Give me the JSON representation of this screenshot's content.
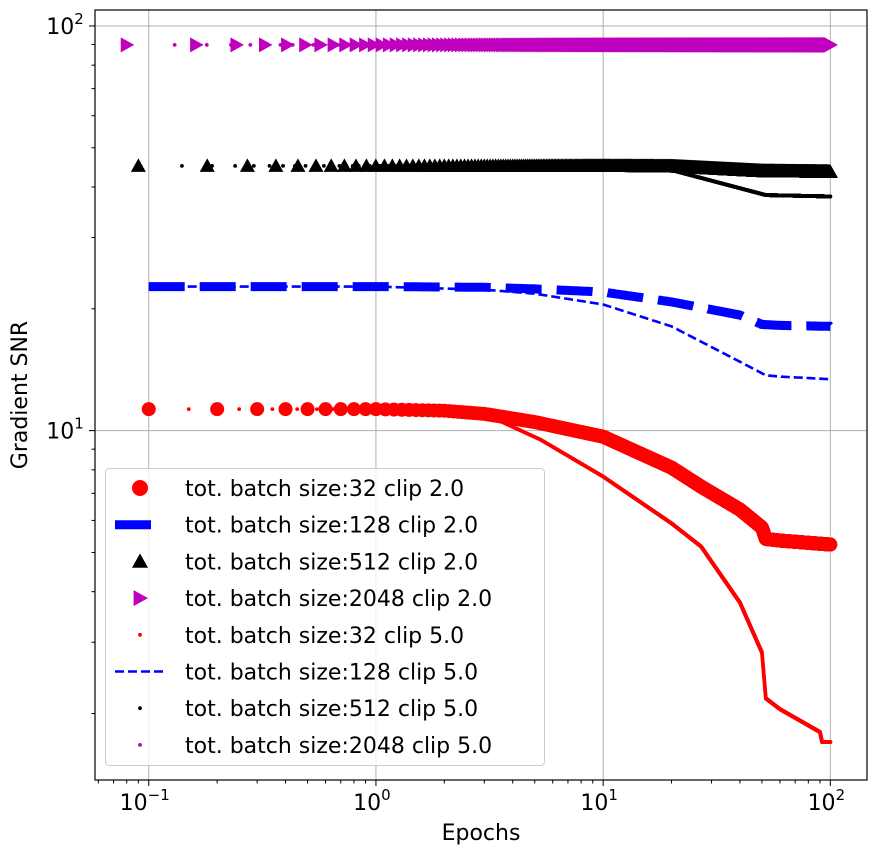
{
  "chart_data": {
    "type": "scatter",
    "title": "",
    "xlabel": "Epochs",
    "ylabel": "Gradient SNR",
    "xscale": "log",
    "yscale": "log",
    "xlim": [
      0.058,
      145
    ],
    "ylim": [
      1.37,
      109.5
    ],
    "x_ticks": [
      {
        "base": "10",
        "exp": "−1"
      },
      {
        "base": "10",
        "exp": "0"
      },
      {
        "base": "10",
        "exp": "1"
      },
      {
        "base": "10",
        "exp": "2"
      }
    ],
    "y_ticks": [
      {
        "base": "10",
        "exp": "1"
      },
      {
        "base": "10",
        "exp": "2"
      }
    ],
    "grid": true,
    "legend_position": "lower-left",
    "series": [
      {
        "name": "tot. batch size:32 clip 2.0",
        "color": "#ff0000",
        "marker": "circle",
        "style": "markers-large",
        "x_step": 0.1,
        "x": [
          0.1,
          1,
          2,
          3,
          5,
          10,
          20,
          27,
          40,
          50,
          52,
          60,
          100
        ],
        "y": [
          11.3,
          11.3,
          11.2,
          11.0,
          10.5,
          9.66,
          8.1,
          7.27,
          6.38,
          5.76,
          5.4,
          5.35,
          5.23
        ]
      },
      {
        "name": "tot. batch size:128 clip 2.0",
        "color": "#0000ff",
        "marker": "none",
        "style": "thick-dashed",
        "x_step": 0.1,
        "x": [
          0.1,
          1,
          3,
          5,
          10,
          20,
          40,
          50,
          60,
          100
        ],
        "y": [
          22.7,
          22.7,
          22.6,
          22.4,
          22.0,
          20.8,
          19.3,
          18.3,
          18.2,
          18.1
        ]
      },
      {
        "name": "tot. batch size:512 clip 2.0",
        "color": "#000000",
        "marker": "triangle-up",
        "style": "markers-large",
        "x_step": 0.0909,
        "x": [
          0.09,
          1,
          10,
          20,
          50,
          100
        ],
        "y": [
          45.1,
          45.1,
          45.1,
          45.0,
          43.8,
          43.6
        ]
      },
      {
        "name": "tot. batch size:2048 clip 2.0",
        "color": "#bf00bf",
        "marker": "triangle-right",
        "style": "markers-large",
        "x_step": 0.0816,
        "x": [
          0.08,
          1,
          10,
          100
        ],
        "y": [
          89.8,
          89.8,
          89.8,
          89.8
        ]
      },
      {
        "name": "tot. batch size:32 clip 5.0",
        "color": "#ff0000",
        "marker": "point",
        "style": "markers-small",
        "x_step": 0.05,
        "x": [
          0.1,
          1,
          2,
          3,
          5.3,
          10,
          20,
          27,
          40,
          50,
          52,
          60,
          90,
          92,
          100
        ],
        "y": [
          11.3,
          11.3,
          11.25,
          11.0,
          9.5,
          7.7,
          5.9,
          5.17,
          3.76,
          2.83,
          2.18,
          2.05,
          1.8,
          1.7,
          1.7
        ]
      },
      {
        "name": "tot. batch size:128 clip 5.0",
        "color": "#0000ff",
        "marker": "none",
        "style": "dashed",
        "x_step": 0.1,
        "x": [
          0.1,
          1,
          3,
          5,
          10,
          20,
          40,
          52,
          60,
          100
        ],
        "y": [
          22.7,
          22.7,
          22.3,
          21.8,
          20.5,
          18.1,
          14.8,
          13.7,
          13.6,
          13.4
        ]
      },
      {
        "name": "tot. batch size:512 clip 5.0",
        "color": "#000000",
        "marker": "point",
        "style": "markers-small",
        "x_step": 0.05,
        "x": [
          0.09,
          1,
          10,
          17.8,
          52,
          100
        ],
        "y": [
          45.1,
          45.1,
          45.0,
          44.8,
          38.2,
          37.9
        ]
      },
      {
        "name": "tot. batch size:2048 clip 5.0",
        "color": "#bf00bf",
        "marker": "point",
        "style": "markers-small",
        "x_step": 0.05,
        "x": [
          0.08,
          1,
          10,
          100
        ],
        "y": [
          89.8,
          89.8,
          89.8,
          89.8
        ]
      }
    ]
  }
}
